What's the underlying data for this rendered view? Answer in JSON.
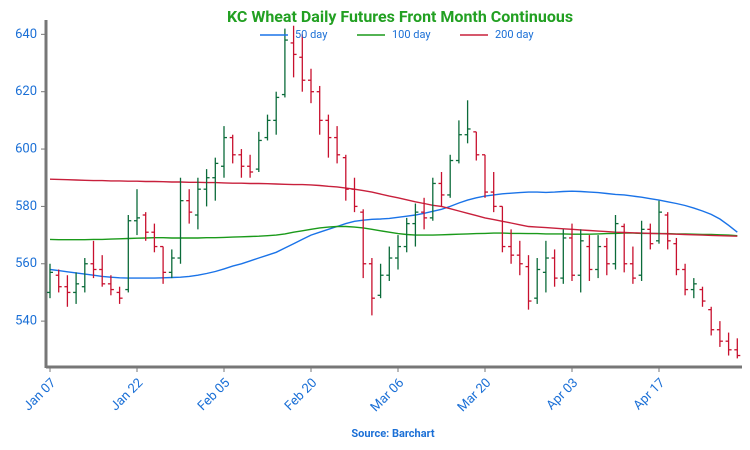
{
  "chart_data": {
    "type": "ohlc",
    "title": "KC Wheat Daily Futures Front Month Continuous",
    "source": "Source: Barchart",
    "categories": [
      "Jan 07",
      null,
      null,
      null,
      null,
      null,
      null,
      null,
      null,
      null,
      "Jan 22",
      null,
      null,
      null,
      null,
      null,
      null,
      null,
      null,
      null,
      "Feb 05",
      null,
      null,
      null,
      null,
      null,
      null,
      null,
      null,
      null,
      "Feb 20",
      null,
      null,
      null,
      null,
      null,
      null,
      null,
      null,
      null,
      "Mar 06",
      null,
      null,
      null,
      null,
      null,
      null,
      null,
      null,
      null,
      "Mar 20",
      null,
      null,
      null,
      null,
      null,
      null,
      null,
      null,
      null,
      "Apr 03",
      null,
      null,
      null,
      null,
      null,
      null,
      null,
      null,
      null,
      "Apr 17",
      null,
      null,
      null,
      null,
      null,
      null,
      null,
      null,
      null
    ],
    "open": [
      550,
      556,
      552,
      550,
      552,
      560,
      558,
      553,
      550,
      551,
      575,
      577,
      571,
      566,
      557,
      562,
      582,
      577,
      586,
      590,
      594,
      604,
      598,
      594,
      593,
      604,
      610,
      619,
      637,
      632,
      624,
      620,
      610,
      604,
      597,
      586,
      578,
      560,
      549,
      556,
      562,
      566,
      574,
      578,
      576,
      588,
      584,
      596,
      605,
      606,
      598,
      585,
      580,
      566,
      563,
      559,
      548,
      557,
      562,
      555,
      569,
      556,
      566,
      558,
      566,
      560,
      573,
      560,
      556,
      572,
      568,
      577,
      567,
      558,
      551,
      551,
      544,
      537,
      533,
      530
    ],
    "high": [
      560,
      558,
      556,
      557,
      562,
      568,
      563,
      556,
      552,
      577,
      586,
      578,
      574,
      566,
      565,
      590,
      586,
      590,
      593,
      597,
      608,
      605,
      600,
      598,
      606,
      612,
      620,
      642,
      643,
      640,
      628,
      622,
      612,
      608,
      598,
      590,
      579,
      562,
      560,
      566,
      570,
      576,
      581,
      583,
      590,
      592,
      598,
      610,
      617,
      606,
      598,
      592,
      580,
      572,
      568,
      563,
      562,
      568,
      565,
      572,
      574,
      572,
      570,
      570,
      569,
      577,
      574,
      566,
      575,
      574,
      582,
      578,
      569,
      560,
      555,
      552,
      545,
      540,
      536,
      534
    ],
    "low": [
      548,
      550,
      545,
      546,
      550,
      555,
      552,
      549,
      546,
      550,
      570,
      568,
      564,
      553,
      555,
      560,
      574,
      572,
      580,
      582,
      590,
      595,
      590,
      590,
      592,
      603,
      605,
      618,
      625,
      620,
      616,
      605,
      597,
      595,
      582,
      578,
      555,
      542,
      548,
      554,
      558,
      564,
      566,
      572,
      575,
      580,
      583,
      595,
      602,
      596,
      583,
      578,
      564,
      560,
      556,
      544,
      546,
      550,
      552,
      553,
      554,
      550,
      554,
      555,
      556,
      558,
      557,
      553,
      554,
      565,
      567,
      565,
      556,
      549,
      548,
      545,
      535,
      531,
      528,
      527
    ],
    "close": [
      557,
      552,
      550,
      553,
      560,
      558,
      553,
      551,
      548,
      575,
      576,
      571,
      566,
      557,
      562,
      582,
      578,
      586,
      590,
      595,
      604,
      598,
      594,
      592,
      603,
      610,
      618,
      638,
      633,
      624,
      620,
      610,
      604,
      598,
      586,
      580,
      560,
      548,
      556,
      562,
      566,
      574,
      578,
      576,
      588,
      584,
      596,
      605,
      607,
      598,
      585,
      580,
      566,
      563,
      560,
      547,
      558,
      562,
      555,
      569,
      556,
      568,
      558,
      566,
      560,
      574,
      560,
      555,
      572,
      567,
      578,
      568,
      558,
      551,
      553,
      547,
      537,
      533,
      530,
      528
    ],
    "up_color": "#0b6b3a",
    "down_color": "#c8102e",
    "series": [
      {
        "name": "50 day",
        "color": "#1a73e8",
        "values": [
          558,
          557.6,
          557.2,
          556.8,
          556.4,
          556,
          555.6,
          555.3,
          555.1,
          555,
          555,
          555,
          555,
          555.1,
          555.2,
          555.3,
          555.6,
          556,
          556.6,
          557.3,
          558.2,
          559.2,
          560,
          561,
          562,
          563,
          564,
          565.5,
          567,
          568.5,
          570,
          571,
          572,
          573,
          574,
          574.8,
          575.2,
          575.5,
          575.6,
          575.8,
          576.2,
          576.6,
          577,
          577.6,
          578.3,
          579,
          580,
          581.2,
          582.2,
          583,
          583.6,
          584,
          584.4,
          584.6,
          584.8,
          585,
          585,
          584.9,
          585,
          585.2,
          585.3,
          585.2,
          585,
          584.8,
          584.5,
          584.2,
          584,
          583.6,
          583.2,
          582.7,
          582.2,
          581.6,
          581,
          580.3,
          579.4,
          578.4,
          577.2,
          575.6,
          573.4,
          571
        ]
      },
      {
        "name": "100 day",
        "color": "#1a9a1a",
        "values": [
          568.5,
          568.4,
          568.4,
          568.4,
          568.4,
          568.5,
          568.5,
          568.6,
          568.7,
          568.8,
          568.9,
          569,
          569.1,
          569.1,
          569,
          569,
          569,
          569,
          569.1,
          569.1,
          569.2,
          569.3,
          569.4,
          569.5,
          569.6,
          569.8,
          570,
          570.4,
          571,
          571.5,
          572,
          572.5,
          572.8,
          573,
          573,
          572.8,
          572.5,
          572,
          571.5,
          571,
          570.5,
          570.2,
          570,
          570,
          570,
          570.1,
          570.2,
          570.3,
          570.4,
          570.5,
          570.6,
          570.7,
          570.7,
          570.6,
          570.6,
          570.5,
          570.5,
          570.4,
          570.4,
          570.4,
          570.3,
          570.3,
          570.3,
          570.4,
          570.5,
          570.6,
          570.7,
          570.7,
          570.6,
          570.6,
          570.5,
          570.5,
          570.4,
          570.4,
          570.3,
          570.2,
          570.2,
          570.1,
          570,
          569.8
        ]
      },
      {
        "name": "200 day",
        "color": "#c8203c",
        "values": [
          589.5,
          589.4,
          589.3,
          589.2,
          589.1,
          589,
          589,
          588.9,
          588.9,
          588.8,
          588.8,
          588.7,
          588.7,
          588.6,
          588.5,
          588.5,
          588.4,
          588.4,
          588.3,
          588.3,
          588.2,
          588.1,
          588.1,
          588,
          588,
          587.9,
          587.8,
          587.7,
          587.6,
          587.6,
          587.5,
          587.3,
          587,
          586.8,
          586.4,
          586,
          585.5,
          585,
          584.3,
          583.6,
          583,
          582.3,
          581.6,
          581,
          580.4,
          580,
          579.2,
          578.4,
          577.6,
          576.8,
          576,
          575.4,
          574.8,
          574.2,
          573.6,
          573,
          572.8,
          572.6,
          572.4,
          572.2,
          572,
          571.8,
          571.6,
          571.4,
          571.2,
          571,
          570.9,
          570.8,
          570.7,
          570.6,
          570.5,
          570.4,
          570.3,
          570.2,
          570.1,
          570,
          569.9,
          569.8,
          569.7,
          569.6
        ]
      }
    ],
    "ylim": [
      524,
      645
    ],
    "yticks": [
      540,
      560,
      580,
      600,
      620,
      640
    ],
    "legend": "top"
  }
}
